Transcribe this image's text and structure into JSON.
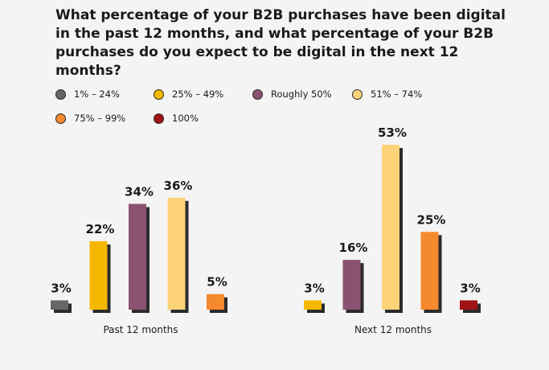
{
  "chart_data": {
    "type": "bar",
    "title": "What percentage of your B2B purchases have been digital in the past 12 months, and what percentage of your B2B purchases do you expect to be digital in the next 12 months?",
    "legend": [
      {
        "name": "1% – 24%",
        "color": "#666666"
      },
      {
        "name": "25% – 49%",
        "color": "#f5b800"
      },
      {
        "name": "Roughly 50%",
        "color": "#8a5270"
      },
      {
        "name": "51% – 74%",
        "color": "#fdd37a"
      },
      {
        "name": "75% – 99%",
        "color": "#f5892e"
      },
      {
        "name": "100%",
        "color": "#9e1414"
      }
    ],
    "legend_placement": "top-left",
    "groups": [
      {
        "label": "Past 12 months",
        "bars": [
          {
            "series": "1% – 24%",
            "value": 3,
            "label": "3%"
          },
          {
            "series": "25% – 49%",
            "value": 22,
            "label": "22%"
          },
          {
            "series": "Roughly 50%",
            "value": 34,
            "label": "34%"
          },
          {
            "series": "51% – 74%",
            "value": 36,
            "label": "36%"
          },
          {
            "series": "75% – 99%",
            "value": 5,
            "label": "5%"
          }
        ]
      },
      {
        "label": "Next 12 months",
        "bars": [
          {
            "series": "25% – 49%",
            "value": 3,
            "label": "3%"
          },
          {
            "series": "Roughly 50%",
            "value": 16,
            "label": "16%"
          },
          {
            "series": "51% – 74%",
            "value": 53,
            "label": "53%"
          },
          {
            "series": "75% – 99%",
            "value": 25,
            "label": "25%"
          },
          {
            "series": "100%",
            "value": 3,
            "label": "3%"
          }
        ]
      }
    ],
    "ylim": [
      0,
      53
    ],
    "grid": false
  }
}
